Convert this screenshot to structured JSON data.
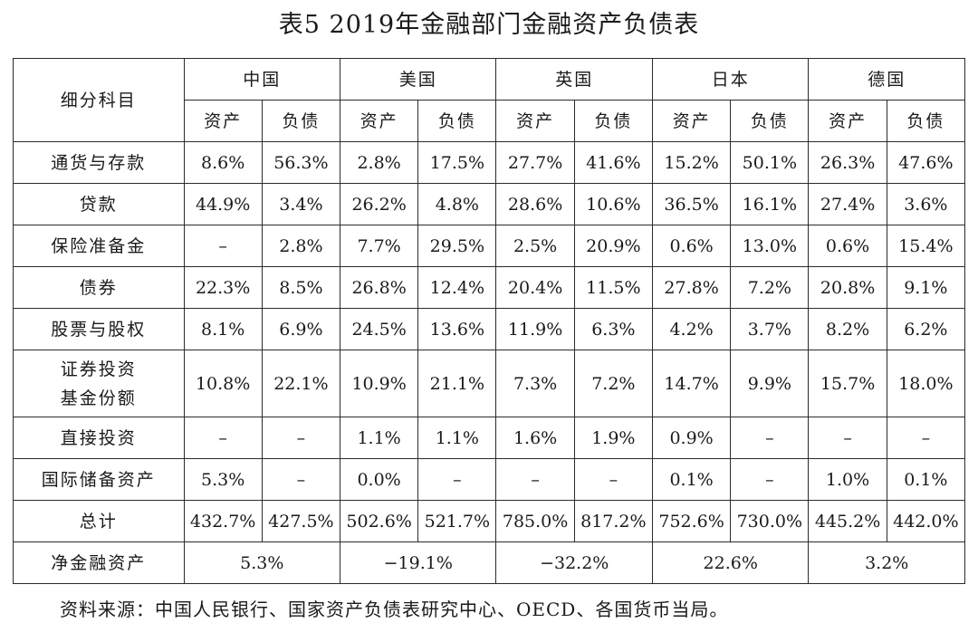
{
  "title": "表5  2019年金融部门金融资产负债表",
  "table": {
    "item_header": "细分科目",
    "countries": [
      "中国",
      "美国",
      "英国",
      "日本",
      "德国"
    ],
    "sub_headers": [
      "资产",
      "负债"
    ],
    "rows": [
      {
        "label": "通货与存款",
        "values": [
          "8.6%",
          "56.3%",
          "2.8%",
          "17.5%",
          "27.7%",
          "41.6%",
          "15.2%",
          "50.1%",
          "26.3%",
          "47.6%"
        ]
      },
      {
        "label": "贷款",
        "values": [
          "44.9%",
          "3.4%",
          "26.2%",
          "4.8%",
          "28.6%",
          "10.6%",
          "36.5%",
          "16.1%",
          "27.4%",
          "3.6%"
        ]
      },
      {
        "label": "保险准备金",
        "values": [
          "–",
          "2.8%",
          "7.7%",
          "29.5%",
          "2.5%",
          "20.9%",
          "0.6%",
          "13.0%",
          "0.6%",
          "15.4%"
        ]
      },
      {
        "label": "债券",
        "values": [
          "22.3%",
          "8.5%",
          "26.8%",
          "12.4%",
          "20.4%",
          "11.5%",
          "27.8%",
          "7.2%",
          "20.8%",
          "9.1%"
        ]
      },
      {
        "label": "股票与股权",
        "values": [
          "8.1%",
          "6.9%",
          "24.5%",
          "13.6%",
          "11.9%",
          "6.3%",
          "4.2%",
          "3.7%",
          "8.2%",
          "6.2%"
        ]
      },
      {
        "label": "证券投资基金份额",
        "label_lines": [
          "证券投资",
          "基金份额"
        ],
        "values": [
          "10.8%",
          "22.1%",
          "10.9%",
          "21.1%",
          "7.3%",
          "7.2%",
          "14.7%",
          "9.9%",
          "15.7%",
          "18.0%"
        ]
      },
      {
        "label": "直接投资",
        "values": [
          "–",
          "–",
          "1.1%",
          "1.1%",
          "1.6%",
          "1.9%",
          "0.9%",
          "–",
          "–",
          "–"
        ]
      },
      {
        "label": "国际储备资产",
        "values": [
          "5.3%",
          "–",
          "0.0%",
          "–",
          "–",
          "–",
          "0.1%",
          "–",
          "1.0%",
          "0.1%"
        ]
      },
      {
        "label": "总计",
        "values": [
          "432.7%",
          "427.5%",
          "502.6%",
          "521.7%",
          "785.0%",
          "817.2%",
          "752.6%",
          "730.0%",
          "445.2%",
          "442.0%"
        ]
      }
    ],
    "net_row": {
      "label": "净金融资产",
      "values": [
        "5.3%",
        "−19.1%",
        "−32.2%",
        "22.6%",
        "3.2%"
      ]
    }
  },
  "source": "资料来源：中国人民银行、国家资产负债表研究中心、OECD、各国货币当局。"
}
